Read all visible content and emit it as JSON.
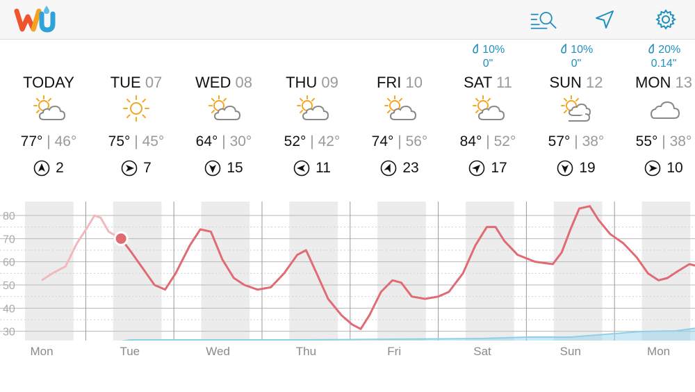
{
  "app": {
    "logo_text": "wu"
  },
  "header": {
    "icons": [
      "search-list-icon",
      "location-arrow-icon",
      "gear-icon"
    ],
    "accent_color": "#1f8fbf"
  },
  "days": [
    {
      "name": "TODAY",
      "date": "",
      "icon": "partly-cloudy-icon",
      "high": "77°",
      "low": "46°",
      "wind_dir": "N",
      "wind_speed": "2",
      "precip_chance": "",
      "precip_amount": ""
    },
    {
      "name": "TUE",
      "date": "07",
      "icon": "sunny-icon",
      "high": "75°",
      "low": "45°",
      "wind_dir": "E",
      "wind_speed": "7",
      "precip_chance": "",
      "precip_amount": ""
    },
    {
      "name": "WED",
      "date": "08",
      "icon": "partly-cloudy-icon",
      "high": "64°",
      "low": "30°",
      "wind_dir": "S",
      "wind_speed": "15",
      "precip_chance": "",
      "precip_amount": ""
    },
    {
      "name": "THU",
      "date": "09",
      "icon": "partly-cloudy-icon",
      "high": "52°",
      "low": "42°",
      "wind_dir": "W",
      "wind_speed": "11",
      "precip_chance": "",
      "precip_amount": ""
    },
    {
      "name": "FRI",
      "date": "10",
      "icon": "partly-cloudy-icon",
      "high": "74°",
      "low": "56°",
      "wind_dir": "NNE",
      "wind_speed": "23",
      "precip_chance": "",
      "precip_amount": ""
    },
    {
      "name": "SAT",
      "date": "11",
      "icon": "partly-cloudy-icon",
      "high": "84°",
      "low": "52°",
      "wind_dir": "NE",
      "wind_speed": "17",
      "precip_chance": "10%",
      "precip_amount": "0\""
    },
    {
      "name": "SUN",
      "date": "12",
      "icon": "mostly-cloudy-icon",
      "high": "57°",
      "low": "38°",
      "wind_dir": "S",
      "wind_speed": "19",
      "precip_chance": "10%",
      "precip_amount": "0\""
    },
    {
      "name": "MON",
      "date": "13",
      "icon": "cloudy-icon",
      "high": "55°",
      "low": "38°",
      "wind_dir": "E",
      "wind_speed": "10",
      "precip_chance": "20%",
      "precip_amount": "0.14\""
    }
  ],
  "graph": {
    "temp_color": "#e06b73",
    "precip_color": "#8fd0e8",
    "y_labels": [
      "80",
      "70",
      "60",
      "50",
      "40",
      "30"
    ],
    "x_labels": [
      "Mon",
      "Tue",
      "Wed",
      "Thu",
      "Fri",
      "Sat",
      "Sun",
      "Mon"
    ],
    "current_temp": 70
  },
  "chart_data": {
    "type": "line",
    "x": [
      "Mon",
      "Tue",
      "Wed",
      "Thu",
      "Fri",
      "Sat",
      "Sun",
      "Mon"
    ],
    "ylim": [
      26,
      86
    ],
    "series": [
      {
        "values": [
          [
            0.0,
            52
          ],
          [
            0.12,
            55
          ],
          [
            0.27,
            58
          ],
          [
            0.4,
            68
          ],
          [
            0.52,
            75
          ],
          [
            0.6,
            80
          ],
          [
            0.67,
            79
          ],
          [
            0.76,
            73
          ],
          [
            0.9,
            70
          ],
          [
            1.02,
            64
          ],
          [
            1.15,
            57
          ],
          [
            1.28,
            50
          ],
          [
            1.4,
            48
          ],
          [
            1.52,
            55
          ],
          [
            1.68,
            67
          ],
          [
            1.8,
            74
          ],
          [
            1.92,
            73
          ],
          [
            2.05,
            61
          ],
          [
            2.18,
            53
          ],
          [
            2.3,
            50
          ],
          [
            2.45,
            48
          ],
          [
            2.6,
            49
          ],
          [
            2.75,
            55
          ],
          [
            2.9,
            63
          ],
          [
            3.0,
            65
          ],
          [
            3.12,
            55
          ],
          [
            3.25,
            44
          ],
          [
            3.4,
            37
          ],
          [
            3.52,
            33
          ],
          [
            3.62,
            31
          ],
          [
            3.72,
            37
          ],
          [
            3.85,
            47
          ],
          [
            3.98,
            52
          ],
          [
            4.08,
            51
          ],
          [
            4.2,
            45
          ],
          [
            4.35,
            44
          ],
          [
            4.5,
            45
          ],
          [
            4.62,
            47
          ],
          [
            4.78,
            55
          ],
          [
            4.92,
            67
          ],
          [
            5.05,
            75
          ],
          [
            5.15,
            75
          ],
          [
            5.25,
            69
          ],
          [
            5.4,
            63
          ],
          [
            5.6,
            60
          ],
          [
            5.8,
            59
          ],
          [
            5.9,
            64
          ],
          [
            6.0,
            74
          ],
          [
            6.1,
            83
          ],
          [
            6.22,
            84
          ],
          [
            6.32,
            78
          ],
          [
            6.45,
            72
          ],
          [
            6.6,
            68
          ],
          [
            6.75,
            62
          ],
          [
            6.88,
            55
          ],
          [
            7.0,
            52
          ],
          [
            7.1,
            53
          ],
          [
            7.22,
            56
          ],
          [
            7.35,
            59
          ],
          [
            7.45,
            58
          ],
          [
            7.55,
            53
          ],
          [
            7.7,
            49
          ],
          [
            7.85,
            44
          ],
          [
            7.98,
            41
          ],
          [
            8.12,
            40
          ],
          [
            8.25,
            45
          ],
          [
            8.42,
            53
          ],
          [
            8.55,
            57
          ],
          [
            8.68,
            56
          ],
          [
            8.8,
            49
          ],
          [
            8.88,
            45
          ]
        ]
      },
      {
        "values": [
          [
            0.0,
            0.0
          ],
          [
            0.9,
            0.0
          ],
          [
            1.0,
            0.02
          ],
          [
            2.0,
            0.02
          ],
          [
            3.0,
            0.02
          ],
          [
            4.0,
            0.03
          ],
          [
            5.0,
            0.04
          ],
          [
            5.5,
            0.06
          ],
          [
            6.0,
            0.06
          ],
          [
            6.4,
            0.1
          ],
          [
            6.8,
            0.14
          ],
          [
            7.2,
            0.15
          ],
          [
            7.6,
            0.22
          ],
          [
            7.8,
            0.45
          ],
          [
            7.95,
            0.4
          ],
          [
            8.1,
            0.38
          ],
          [
            8.3,
            0.45
          ],
          [
            8.6,
            0.46
          ],
          [
            8.88,
            0.37
          ]
        ]
      }
    ]
  }
}
